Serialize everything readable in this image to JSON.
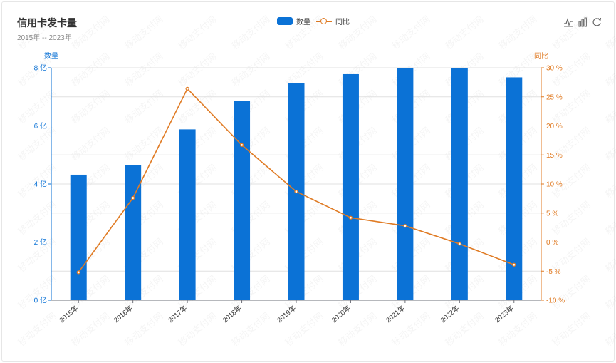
{
  "title": "信用卡发卡量",
  "subtitle": "2015年 -- 2023年",
  "watermark": "移动支付网",
  "toolbox": [
    {
      "icon": "line-chart-icon"
    },
    {
      "icon": "bar-chart-icon"
    },
    {
      "icon": "refresh-icon"
    }
  ],
  "colors": {
    "bar": "#0b72d6",
    "line": "#e07b24",
    "grid": "#e0e0e0",
    "axis_left": "#0b72d6",
    "axis_right": "#e07b24"
  },
  "chart_data": {
    "type": "bar",
    "categories": [
      "2015年",
      "2016年",
      "2017年",
      "2018年",
      "2019年",
      "2020年",
      "2021年",
      "2022年",
      "2023年"
    ],
    "series": [
      {
        "name": "数量",
        "type": "bar",
        "axis": "left",
        "values": [
          4.32,
          4.65,
          5.88,
          6.86,
          7.46,
          7.78,
          8.0,
          7.98,
          7.67
        ]
      },
      {
        "name": "同比",
        "type": "line",
        "axis": "right",
        "values": [
          -5.2,
          7.6,
          26.4,
          16.7,
          8.7,
          4.2,
          2.8,
          -0.3,
          -3.9
        ]
      }
    ],
    "y_left": {
      "label": "数量",
      "min": 0,
      "max": 8,
      "ticks": [
        "0 亿",
        "2 亿",
        "4 亿",
        "6 亿",
        "8 亿"
      ]
    },
    "y_right": {
      "label": "同比",
      "min": -10,
      "max": 30,
      "ticks": [
        "-10 %",
        "-5 %",
        "0 %",
        "5 %",
        "10 %",
        "15 %",
        "20 %",
        "25 %",
        "30 %"
      ]
    },
    "grid": true,
    "legend": "top-center"
  }
}
